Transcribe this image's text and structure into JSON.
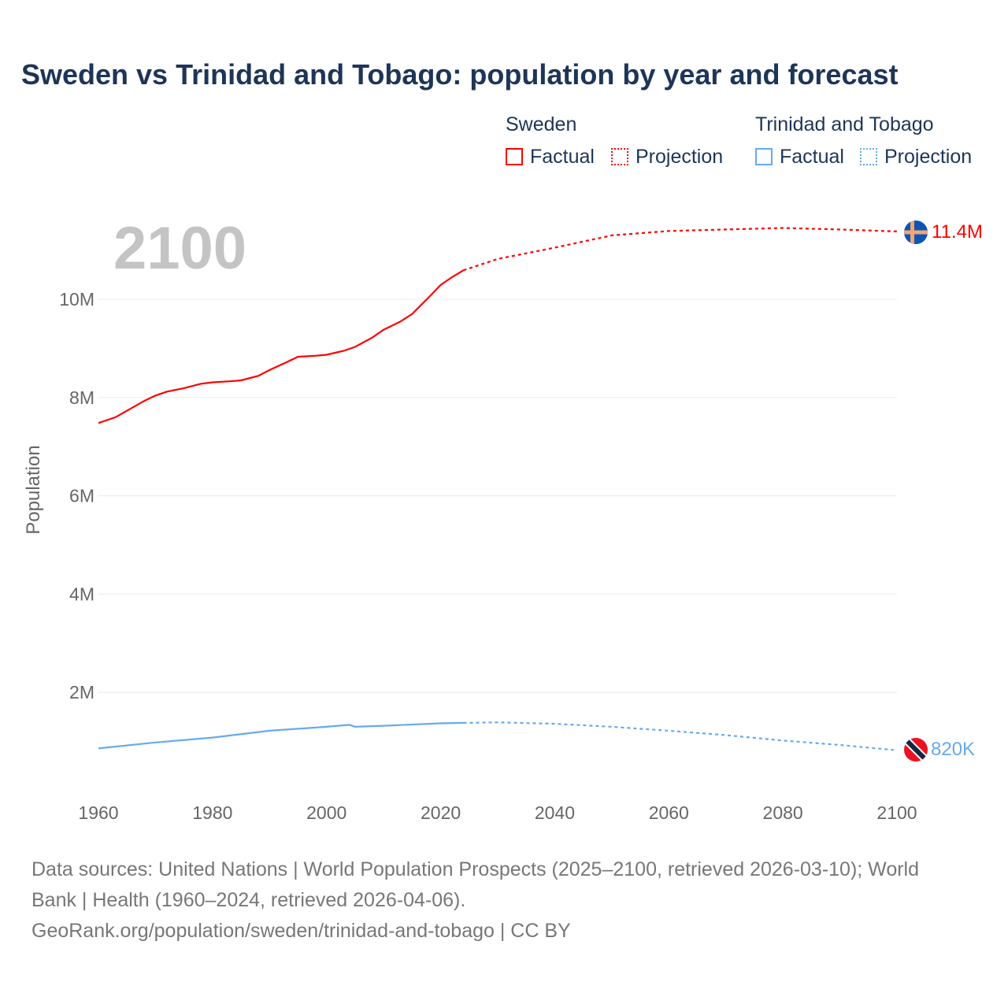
{
  "title": "Sweden vs Trinidad and Tobago: population by year and forecast",
  "legend": {
    "groups": [
      {
        "name": "Sweden",
        "factual": "Factual",
        "projection": "Projection",
        "color": "#ff0000"
      },
      {
        "name": "Trinidad and Tobago",
        "factual": "Factual",
        "projection": "Projection",
        "color": "#66aaee"
      }
    ]
  },
  "year_label": "2100",
  "end_labels": {
    "sweden": "11.4M",
    "trinidad": "820K"
  },
  "footer": {
    "line1": "Data sources: United Nations | World Population Prospects (2025–2100, retrieved 2026-03-10); World",
    "line2": "Bank | Health (1960–2024, retrieved 2026-04-06).",
    "line3": "GeoRank.org/population/sweden/trinidad-and-tobago | CC BY"
  },
  "chart_data": {
    "type": "line",
    "title": "Sweden vs Trinidad and Tobago: population by year and forecast",
    "xlabel": "",
    "ylabel": "Population",
    "xlim": [
      1960,
      2100
    ],
    "ylim": [
      0,
      11.8
    ],
    "x_ticks": [
      "1960",
      "1980",
      "2000",
      "2020",
      "2040",
      "2060",
      "2080",
      "2100"
    ],
    "y_ticks": [
      {
        "v": 2,
        "label": "2M"
      },
      {
        "v": 4,
        "label": "4M"
      },
      {
        "v": 6,
        "label": "6M"
      },
      {
        "v": 8,
        "label": "8M"
      },
      {
        "v": 10,
        "label": "10M"
      }
    ],
    "units": "millions",
    "series": [
      {
        "name": "Sweden Factual",
        "color": "#ff0000",
        "dash": false,
        "x": [
          1960,
          1963,
          1965,
          1968,
          1970,
          1972,
          1975,
          1978,
          1980,
          1983,
          1985,
          1988,
          1990,
          1993,
          1995,
          1998,
          2000,
          2003,
          2005,
          2008,
          2010,
          2013,
          2015,
          2018,
          2020,
          2022,
          2024
        ],
        "values": [
          7.48,
          7.6,
          7.73,
          7.93,
          8.04,
          8.12,
          8.19,
          8.28,
          8.31,
          8.33,
          8.35,
          8.44,
          8.56,
          8.72,
          8.83,
          8.85,
          8.87,
          8.95,
          9.03,
          9.22,
          9.38,
          9.55,
          9.7,
          10.05,
          10.29,
          10.45,
          10.59
        ]
      },
      {
        "name": "Sweden Projection",
        "color": "#ff0000",
        "dash": true,
        "x": [
          2024,
          2030,
          2040,
          2050,
          2060,
          2070,
          2080,
          2090,
          2100
        ],
        "values": [
          10.59,
          10.82,
          11.05,
          11.3,
          11.39,
          11.42,
          11.45,
          11.42,
          11.38
        ]
      },
      {
        "name": "Trinidad and Tobago Factual",
        "color": "#66aaee",
        "dash": false,
        "x": [
          1960,
          1970,
          1980,
          1990,
          2000,
          2004,
          2005,
          2010,
          2020,
          2024
        ],
        "values": [
          0.86,
          0.98,
          1.08,
          1.22,
          1.3,
          1.34,
          1.3,
          1.32,
          1.37,
          1.38
        ]
      },
      {
        "name": "Trinidad and Tobago Projection",
        "color": "#66aaee",
        "dash": true,
        "x": [
          2024,
          2030,
          2040,
          2050,
          2060,
          2070,
          2080,
          2090,
          2100
        ],
        "values": [
          1.38,
          1.39,
          1.36,
          1.3,
          1.22,
          1.13,
          1.02,
          0.93,
          0.82
        ]
      }
    ]
  }
}
